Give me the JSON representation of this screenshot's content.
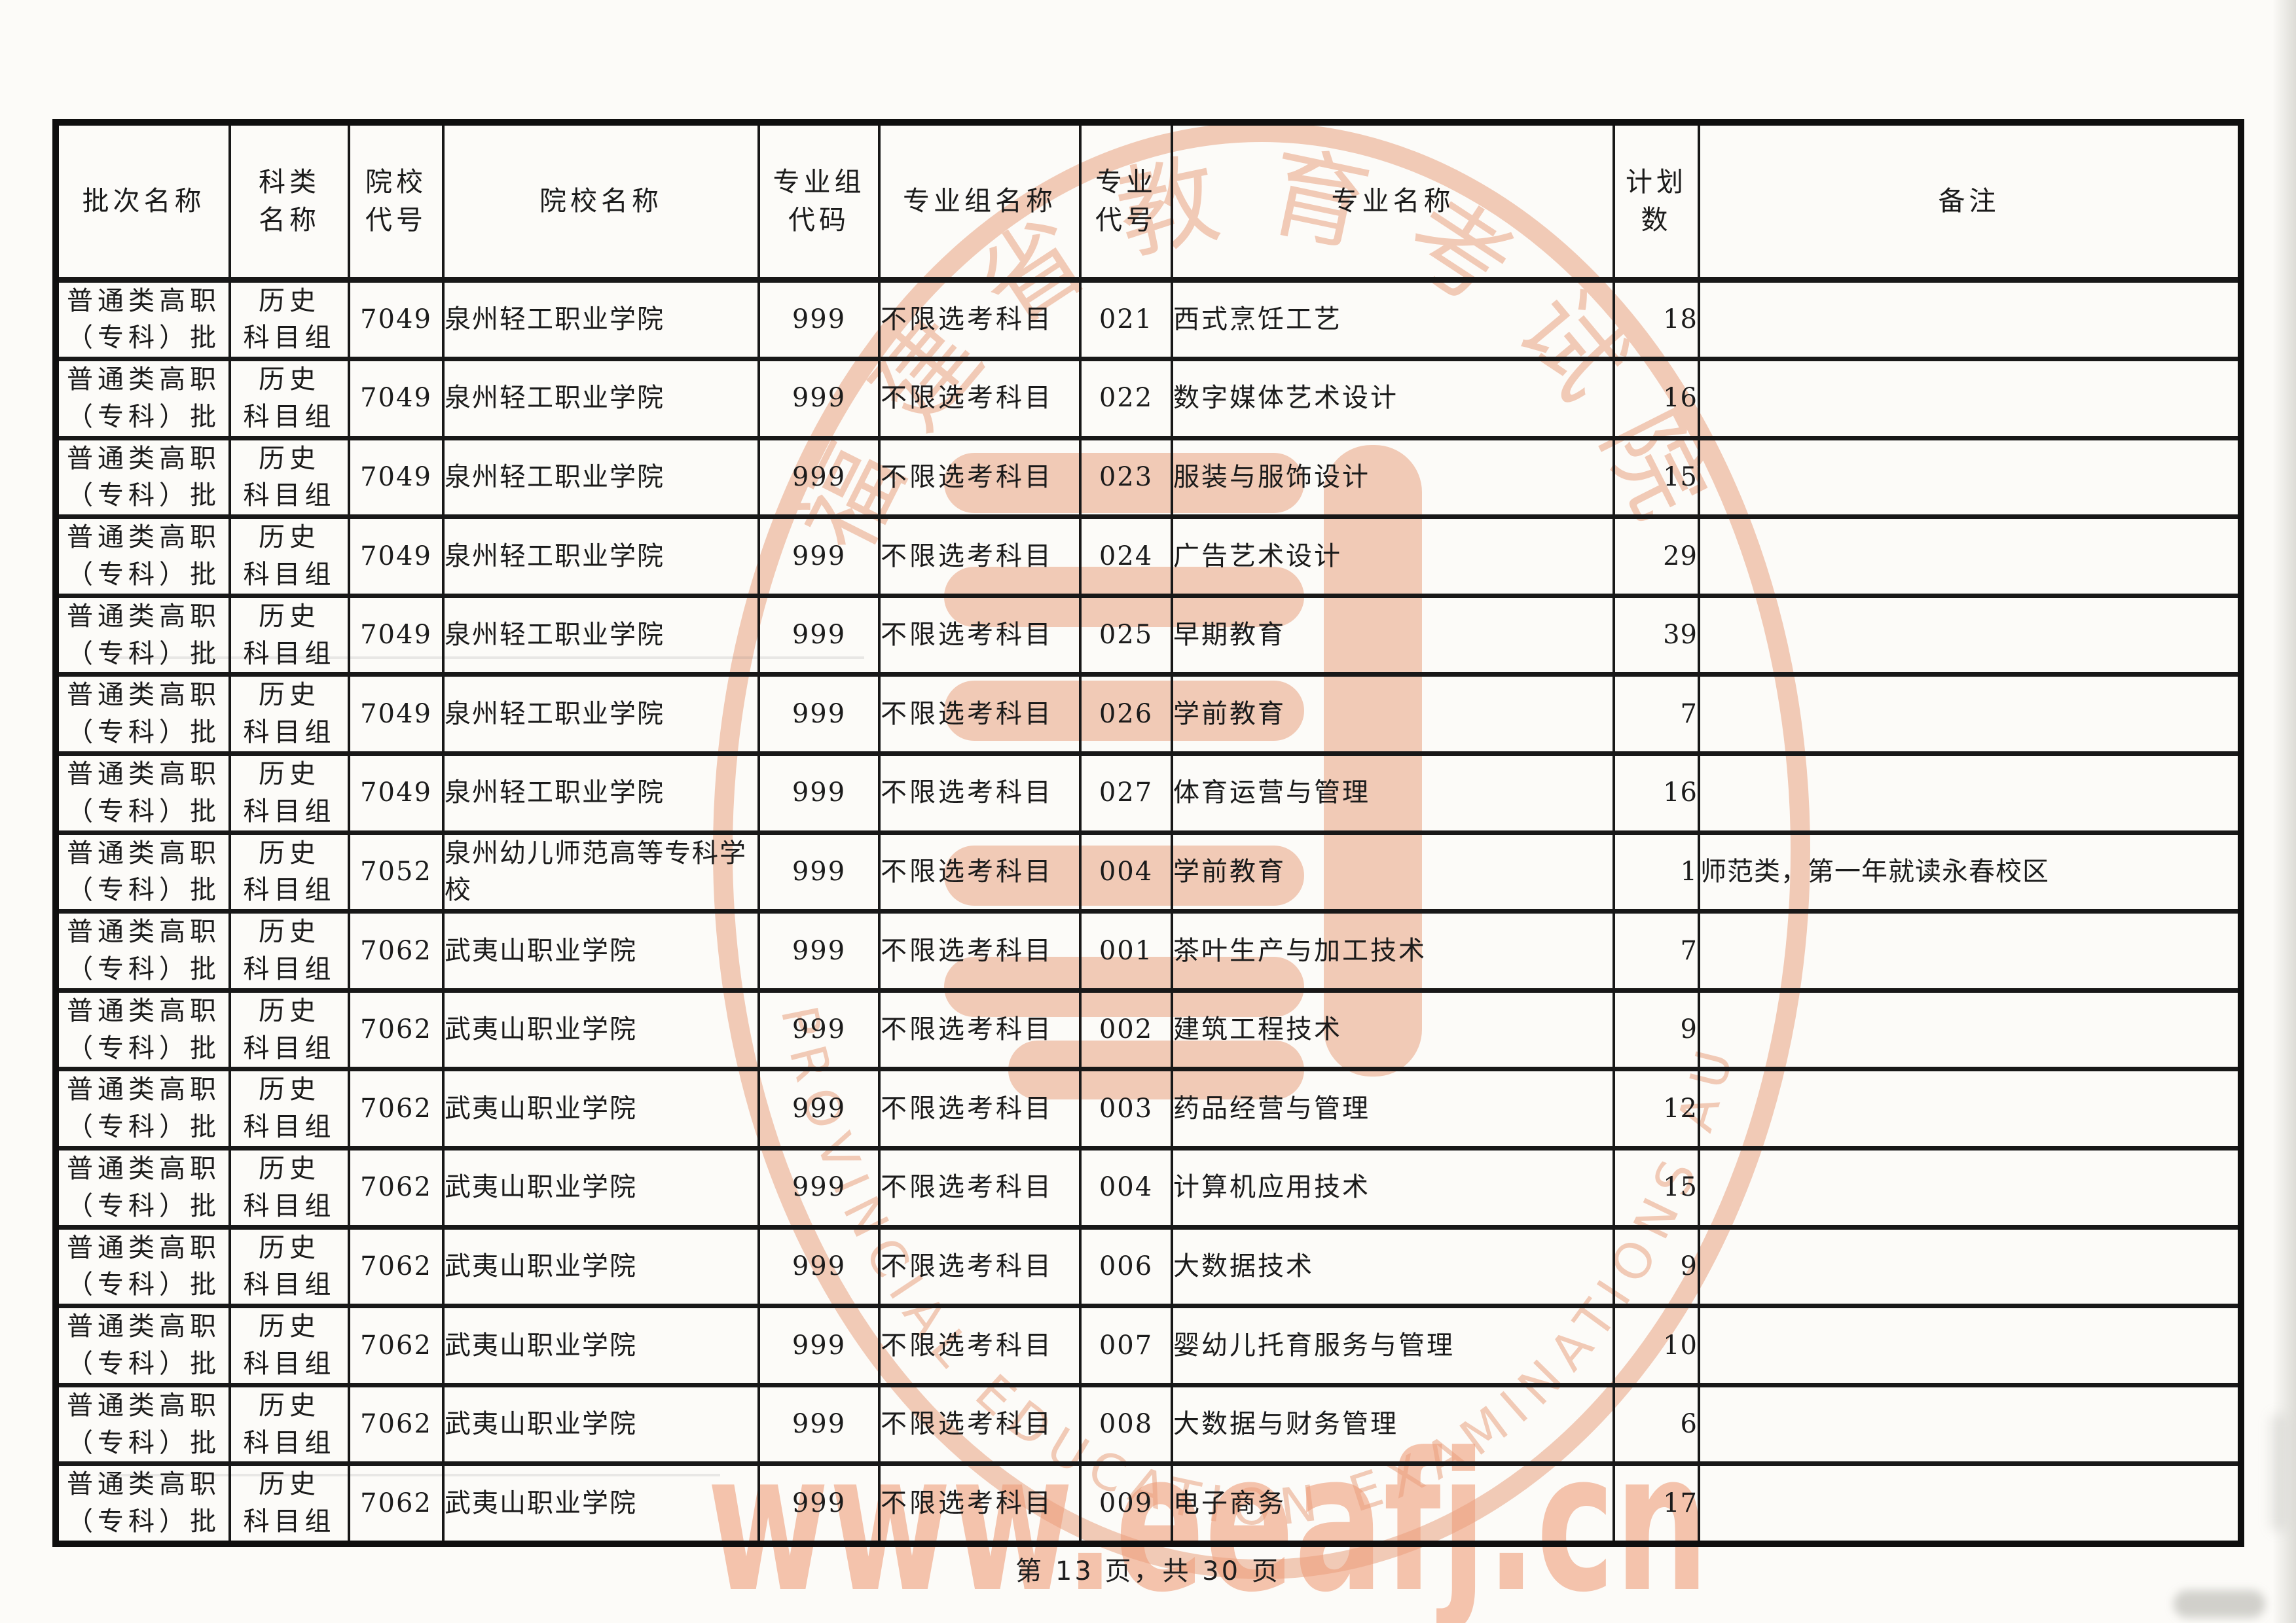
{
  "page": {
    "footer": "第 13 页，共 30 页"
  },
  "watermark": {
    "seal_top_text": "福建省教育考试院",
    "seal_bottom_text": "FUJIAN PROVINCIAL EDUCATION EXAMINATIONS AUTHORITY",
    "url_text": "www.eeafj.cn",
    "seal_color": "#e89a76"
  },
  "table": {
    "headers": [
      "批次名称",
      "科类\n名称",
      "院校\n代号",
      "院校名称",
      "专业组\n代码",
      "专业组名称",
      "专业\n代号",
      "专业名称",
      "计划\n数",
      "备注"
    ],
    "rows": [
      {
        "batch": "普通类高职\n（专科）批",
        "subject": "历史\n科目组",
        "school_code": "7049",
        "school": "泉州轻工职业学院",
        "group_code": "999",
        "group_name": "不限选考科目",
        "major_code": "021",
        "major": "西式烹饪工艺",
        "plan": "18",
        "remark": ""
      },
      {
        "batch": "普通类高职\n（专科）批",
        "subject": "历史\n科目组",
        "school_code": "7049",
        "school": "泉州轻工职业学院",
        "group_code": "999",
        "group_name": "不限选考科目",
        "major_code": "022",
        "major": "数字媒体艺术设计",
        "plan": "16",
        "remark": ""
      },
      {
        "batch": "普通类高职\n（专科）批",
        "subject": "历史\n科目组",
        "school_code": "7049",
        "school": "泉州轻工职业学院",
        "group_code": "999",
        "group_name": "不限选考科目",
        "major_code": "023",
        "major": "服装与服饰设计",
        "plan": "15",
        "remark": ""
      },
      {
        "batch": "普通类高职\n（专科）批",
        "subject": "历史\n科目组",
        "school_code": "7049",
        "school": "泉州轻工职业学院",
        "group_code": "999",
        "group_name": "不限选考科目",
        "major_code": "024",
        "major": "广告艺术设计",
        "plan": "29",
        "remark": ""
      },
      {
        "batch": "普通类高职\n（专科）批",
        "subject": "历史\n科目组",
        "school_code": "7049",
        "school": "泉州轻工职业学院",
        "group_code": "999",
        "group_name": "不限选考科目",
        "major_code": "025",
        "major": "早期教育",
        "plan": "39",
        "remark": ""
      },
      {
        "batch": "普通类高职\n（专科）批",
        "subject": "历史\n科目组",
        "school_code": "7049",
        "school": "泉州轻工职业学院",
        "group_code": "999",
        "group_name": "不限选考科目",
        "major_code": "026",
        "major": "学前教育",
        "plan": "7",
        "remark": ""
      },
      {
        "batch": "普通类高职\n（专科）批",
        "subject": "历史\n科目组",
        "school_code": "7049",
        "school": "泉州轻工职业学院",
        "group_code": "999",
        "group_name": "不限选考科目",
        "major_code": "027",
        "major": "体育运营与管理",
        "plan": "16",
        "remark": ""
      },
      {
        "batch": "普通类高职\n（专科）批",
        "subject": "历史\n科目组",
        "school_code": "7052",
        "school": "泉州幼儿师范高等专科学\n校",
        "group_code": "999",
        "group_name": "不限选考科目",
        "major_code": "004",
        "major": "学前教育",
        "plan": "1",
        "remark": "师范类，第一年就读永春校区"
      },
      {
        "batch": "普通类高职\n（专科）批",
        "subject": "历史\n科目组",
        "school_code": "7062",
        "school": "武夷山职业学院",
        "group_code": "999",
        "group_name": "不限选考科目",
        "major_code": "001",
        "major": "茶叶生产与加工技术",
        "plan": "7",
        "remark": ""
      },
      {
        "batch": "普通类高职\n（专科）批",
        "subject": "历史\n科目组",
        "school_code": "7062",
        "school": "武夷山职业学院",
        "group_code": "999",
        "group_name": "不限选考科目",
        "major_code": "002",
        "major": "建筑工程技术",
        "plan": "9",
        "remark": ""
      },
      {
        "batch": "普通类高职\n（专科）批",
        "subject": "历史\n科目组",
        "school_code": "7062",
        "school": "武夷山职业学院",
        "group_code": "999",
        "group_name": "不限选考科目",
        "major_code": "003",
        "major": "药品经营与管理",
        "plan": "12",
        "remark": ""
      },
      {
        "batch": "普通类高职\n（专科）批",
        "subject": "历史\n科目组",
        "school_code": "7062",
        "school": "武夷山职业学院",
        "group_code": "999",
        "group_name": "不限选考科目",
        "major_code": "004",
        "major": "计算机应用技术",
        "plan": "15",
        "remark": ""
      },
      {
        "batch": "普通类高职\n（专科）批",
        "subject": "历史\n科目组",
        "school_code": "7062",
        "school": "武夷山职业学院",
        "group_code": "999",
        "group_name": "不限选考科目",
        "major_code": "006",
        "major": "大数据技术",
        "plan": "9",
        "remark": ""
      },
      {
        "batch": "普通类高职\n（专科）批",
        "subject": "历史\n科目组",
        "school_code": "7062",
        "school": "武夷山职业学院",
        "group_code": "999",
        "group_name": "不限选考科目",
        "major_code": "007",
        "major": "婴幼儿托育服务与管理",
        "plan": "10",
        "remark": ""
      },
      {
        "batch": "普通类高职\n（专科）批",
        "subject": "历史\n科目组",
        "school_code": "7062",
        "school": "武夷山职业学院",
        "group_code": "999",
        "group_name": "不限选考科目",
        "major_code": "008",
        "major": "大数据与财务管理",
        "plan": "6",
        "remark": ""
      },
      {
        "batch": "普通类高职\n（专科）批",
        "subject": "历史\n科目组",
        "school_code": "7062",
        "school": "武夷山职业学院",
        "group_code": "999",
        "group_name": "不限选考科目",
        "major_code": "009",
        "major": "电子商务",
        "plan": "17",
        "remark": ""
      }
    ]
  }
}
